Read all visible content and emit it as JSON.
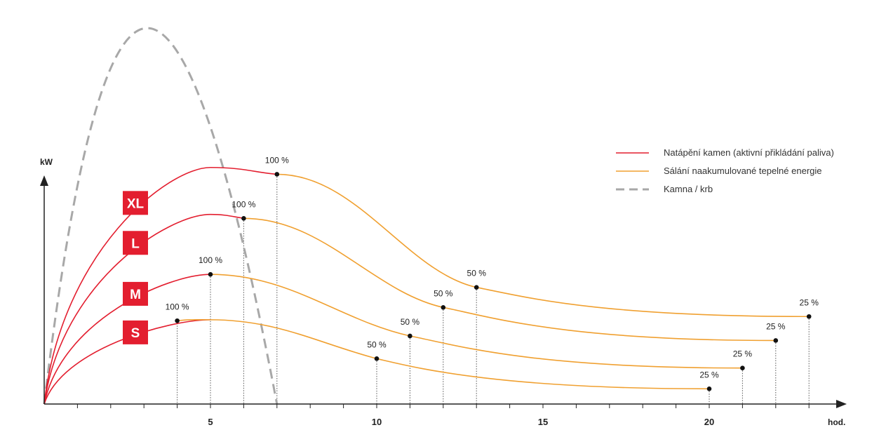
{
  "chart_data": {
    "type": "line",
    "xlabel": "hod.",
    "ylabel": "kW",
    "xlim": [
      0,
      23.2
    ],
    "ylim": [
      0,
      8
    ],
    "x_ticks": [
      1,
      2,
      3,
      4,
      5,
      6,
      7,
      8,
      9,
      10,
      11,
      12,
      13,
      14,
      15,
      16,
      17,
      18,
      19,
      20,
      21,
      22,
      23
    ],
    "x_tick_labels": [
      {
        "x": 5,
        "label": "5"
      },
      {
        "x": 10,
        "label": "10"
      },
      {
        "x": 15,
        "label": "15"
      },
      {
        "x": 20,
        "label": "20"
      }
    ],
    "grid": false,
    "legend_position": "top-right",
    "colors": {
      "heating": "#e31e2f",
      "radiation": "#f0a030",
      "stove": "#a8a8a8",
      "badge": "#e31e2f"
    },
    "legend": [
      {
        "label": "Natápění kamen (aktivní přikládání paliva)",
        "style": "solid",
        "color": "#e31e2f"
      },
      {
        "label": "Sálání naakumulované tepelné energie",
        "style": "solid",
        "color": "#f0a030"
      },
      {
        "label": "Kamna / krb",
        "style": "dashed",
        "color": "#a8a8a8"
      }
    ],
    "series": [
      {
        "name": "XL",
        "peak_x": 5.0,
        "peak_y": 7.3,
        "points": [
          {
            "x": 7,
            "y": 7.09,
            "label": "100 %"
          },
          {
            "x": 13,
            "y": 3.6,
            "label": "50 %"
          },
          {
            "x": 23,
            "y": 2.7,
            "label": "25 %"
          }
        ]
      },
      {
        "name": "L",
        "peak_x": 5.0,
        "peak_y": 5.85,
        "points": [
          {
            "x": 6,
            "y": 5.73,
            "label": "100 %"
          },
          {
            "x": 12,
            "y": 2.98,
            "label": "50 %"
          },
          {
            "x": 22,
            "y": 1.96,
            "label": "25 %"
          }
        ]
      },
      {
        "name": "M",
        "peak_x": 5.0,
        "peak_y": 4.0,
        "points": [
          {
            "x": 5,
            "y": 4.0,
            "label": "100 %"
          },
          {
            "x": 11,
            "y": 2.1,
            "label": "50 %"
          },
          {
            "x": 21,
            "y": 1.11,
            "label": "25 %"
          }
        ]
      },
      {
        "name": "S",
        "peak_x": 5.0,
        "peak_y": 2.6,
        "points": [
          {
            "x": 4,
            "y": 2.57,
            "label": "100 %"
          },
          {
            "x": 10,
            "y": 1.4,
            "label": "50 %"
          },
          {
            "x": 20,
            "y": 0.47,
            "label": "25 %"
          }
        ]
      }
    ],
    "stove": {
      "name": "Kamna / krb",
      "start_x": 0,
      "peak_x": 2.7,
      "peak_y": 11.6,
      "end_x": 7.0
    }
  }
}
